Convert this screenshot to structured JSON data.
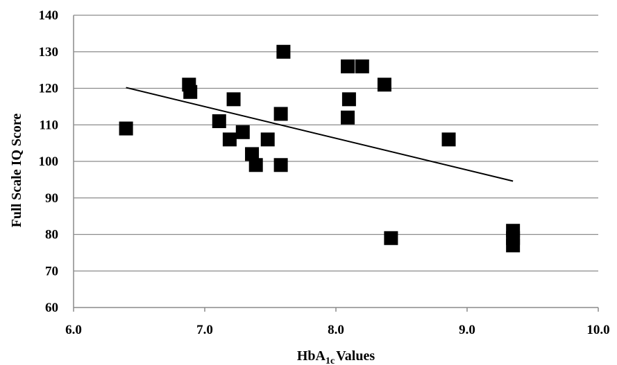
{
  "chart_data": {
    "type": "scatter",
    "title": "",
    "xlabel": {
      "main": "HbA",
      "subscript": "1c",
      "suffix": "Values"
    },
    "ylabel": "Full Scale IQ Score",
    "xlim": [
      6.0,
      10.0
    ],
    "ylim": [
      60,
      140
    ],
    "x_ticks": [
      "6.0",
      "7.0",
      "8.0",
      "9.0",
      "10.0"
    ],
    "y_ticks": [
      "60",
      "70",
      "80",
      "90",
      "100",
      "110",
      "120",
      "130",
      "140"
    ],
    "grid": "horizontal",
    "marker": "square",
    "marker_color": "#000000",
    "line_color": "#000000",
    "points": [
      {
        "x": 6.4,
        "y": 109
      },
      {
        "x": 6.88,
        "y": 121
      },
      {
        "x": 6.89,
        "y": 119
      },
      {
        "x": 7.11,
        "y": 111
      },
      {
        "x": 7.19,
        "y": 106
      },
      {
        "x": 7.22,
        "y": 117
      },
      {
        "x": 7.29,
        "y": 108
      },
      {
        "x": 7.36,
        "y": 102
      },
      {
        "x": 7.39,
        "y": 99
      },
      {
        "x": 7.48,
        "y": 106
      },
      {
        "x": 7.58,
        "y": 113
      },
      {
        "x": 7.58,
        "y": 99
      },
      {
        "x": 7.6,
        "y": 130
      },
      {
        "x": 8.09,
        "y": 126
      },
      {
        "x": 8.2,
        "y": 126
      },
      {
        "x": 8.1,
        "y": 117
      },
      {
        "x": 8.09,
        "y": 112
      },
      {
        "x": 8.37,
        "y": 121
      },
      {
        "x": 8.42,
        "y": 79
      },
      {
        "x": 8.86,
        "y": 106
      },
      {
        "x": 9.35,
        "y": 81
      },
      {
        "x": 9.35,
        "y": 79
      },
      {
        "x": 9.35,
        "y": 77
      }
    ],
    "trendline": {
      "x": [
        6.4,
        9.35
      ],
      "y": [
        120.2,
        94.6
      ]
    }
  }
}
